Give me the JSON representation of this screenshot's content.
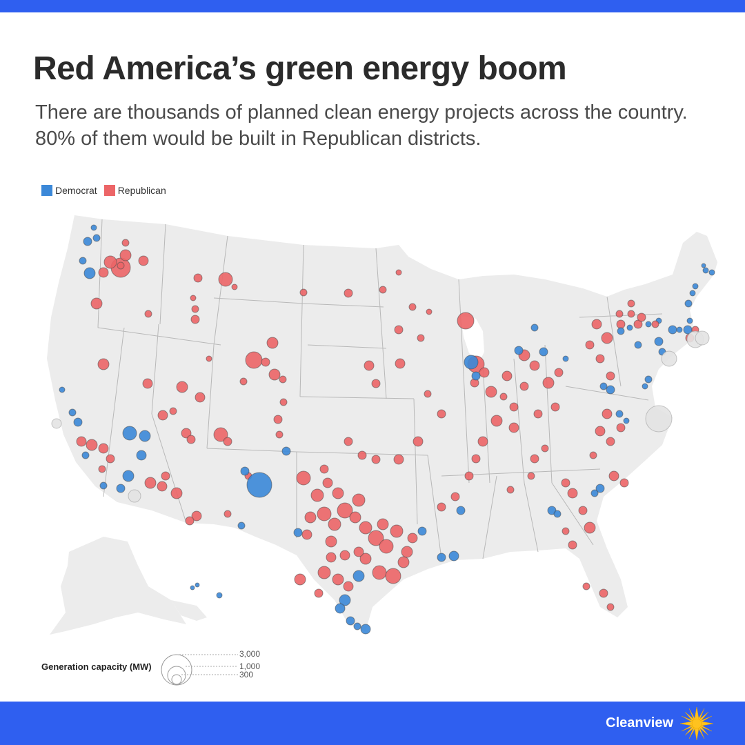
{
  "header": {
    "title": "Red America’s green energy boom",
    "subtitle": "There are thousands of planned clean energy projects across the country. 80% of them would be built in Republican districts."
  },
  "legend": [
    {
      "label": "Democrat",
      "color": "#3b88d8"
    },
    {
      "label": "Republican",
      "color": "#ec6567"
    }
  ],
  "colors": {
    "democrat": "#3b88d8",
    "republican": "#ec6567",
    "unassigned": "#e3e3e3",
    "land": "#ececec",
    "brand_bar": "#2f5ff0"
  },
  "size_legend": {
    "label": "Generation capacity (MW)",
    "values": [
      "3,000",
      "1,000",
      "300"
    ]
  },
  "footer": {
    "brand": "Cleanview",
    "icon": "sun-icon"
  }
}
